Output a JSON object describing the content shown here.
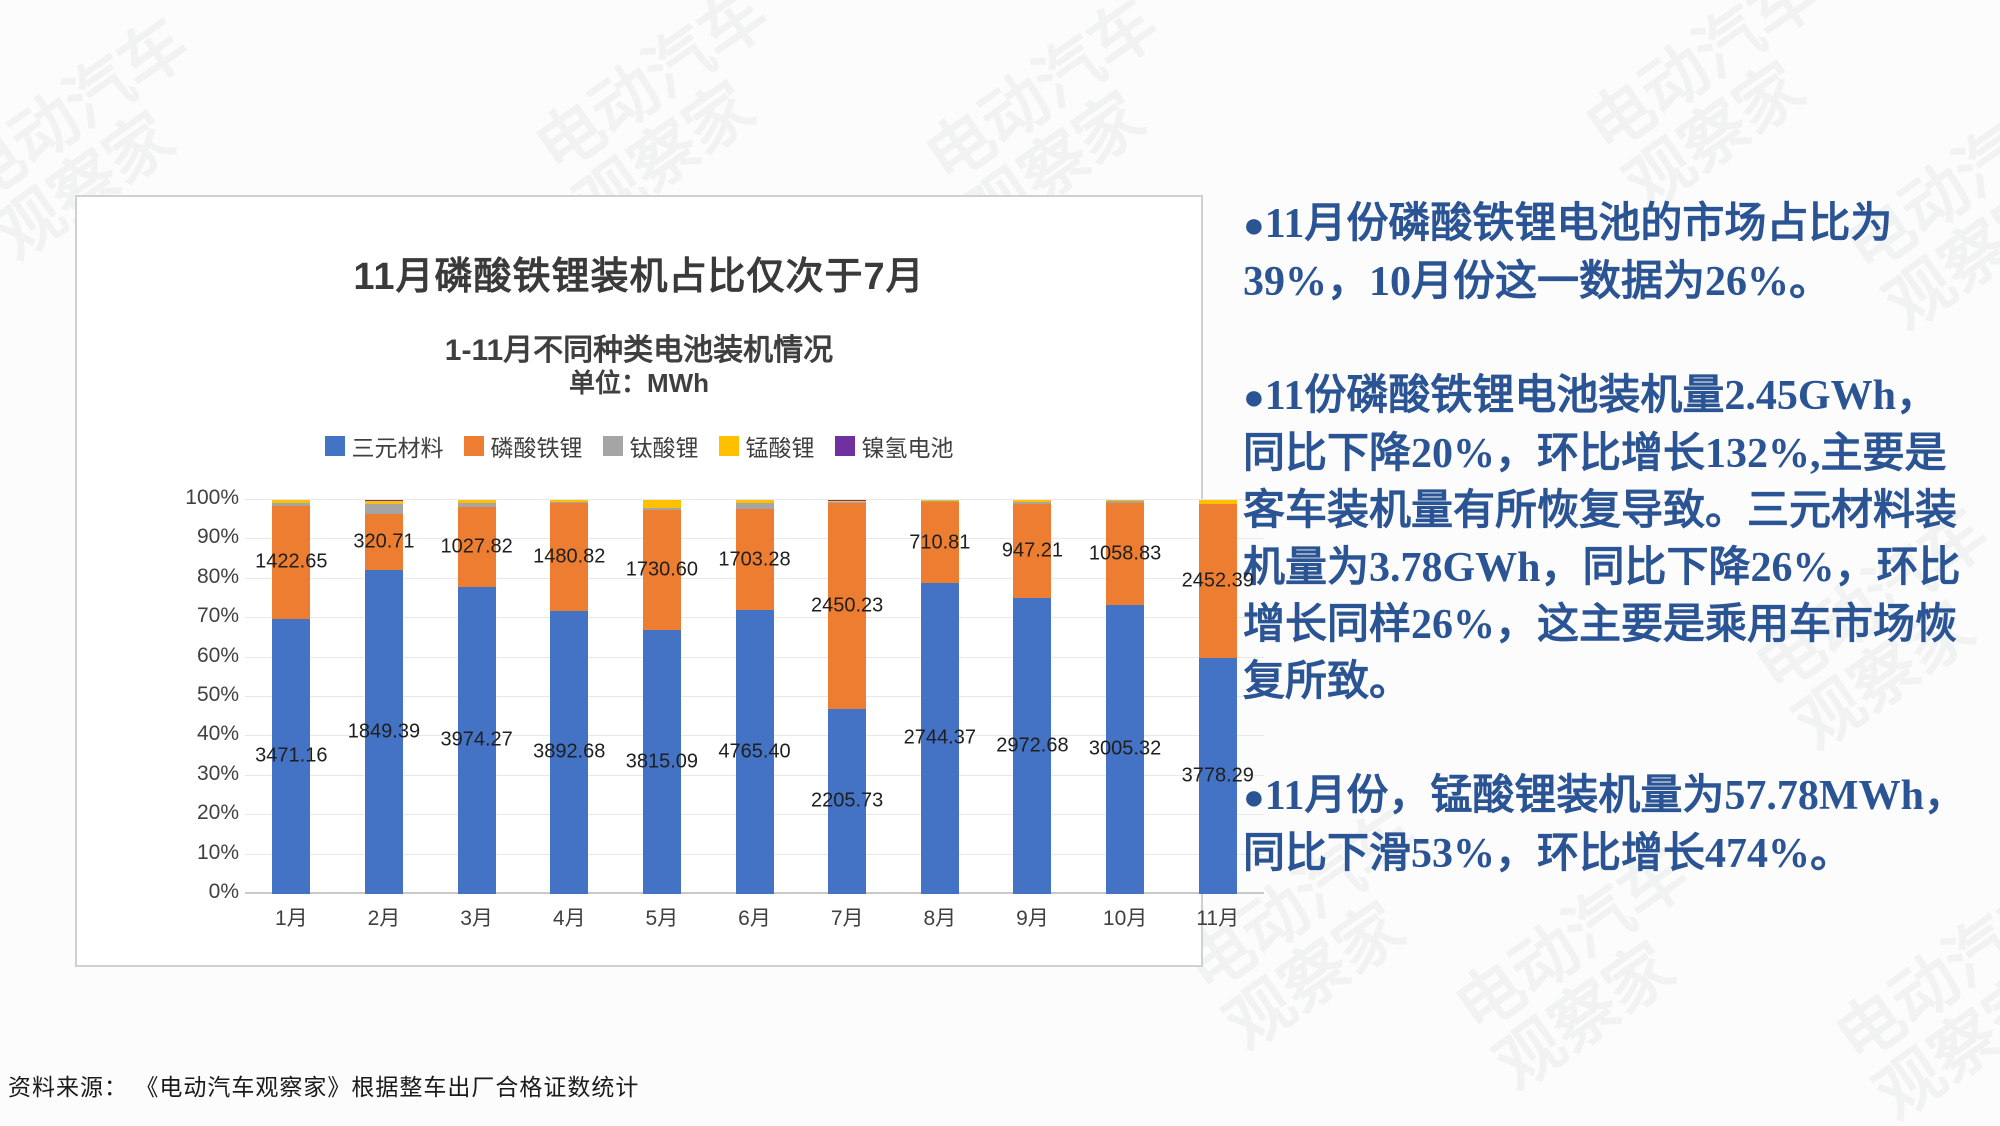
{
  "page": {
    "background": "#fcfcfc",
    "watermark_text": "电动汽车\n观察家",
    "source_note": "资料来源： 《电动汽车观察家》根据整车出厂合格证数统计"
  },
  "chart": {
    "title": "11月磷酸铁锂装机占比仅次于7月",
    "subtitle": "1-11月不同种类电池装机情况",
    "unit_label": "单位：MWh"
  },
  "chart_data": {
    "type": "bar",
    "stacked": true,
    "percent_stacked": true,
    "title": "1-11月不同种类电池装机情况",
    "unit": "MWh",
    "categories": [
      "1月",
      "2月",
      "3月",
      "4月",
      "5月",
      "6月",
      "7月",
      "8月",
      "9月",
      "10月",
      "11月"
    ],
    "series": [
      {
        "name": "三元材料",
        "color": "#4472C4",
        "show_labels": true,
        "values": [
          3471.16,
          1849.39,
          3974.27,
          3892.68,
          3815.09,
          4765.4,
          2205.73,
          2744.37,
          2972.68,
          3005.32,
          3778.29
        ]
      },
      {
        "name": "磷酸铁锂",
        "color": "#ED7D31",
        "show_labels": true,
        "values": [
          1422.65,
          320.71,
          1027.82,
          1480.82,
          1730.6,
          1703.28,
          2450.23,
          710.81,
          947.21,
          1058.83,
          2452.39
        ]
      },
      {
        "name": "钛酸锂",
        "color": "#A5A5A5",
        "show_labels": false,
        "values": [
          30,
          58,
          60,
          10,
          25,
          100,
          8,
          12,
          20,
          15,
          5
        ]
      },
      {
        "name": "锰酸锂",
        "color": "#FFC000",
        "show_labels": false,
        "values": [
          40,
          18,
          30,
          25,
          115,
          45,
          15,
          6,
          20,
          10,
          57.78
        ]
      },
      {
        "name": "镍氢电池",
        "color": "#7030A0",
        "show_labels": false,
        "values": [
          3,
          3,
          3,
          2,
          3,
          4,
          14,
          2,
          2,
          2,
          2
        ]
      }
    ],
    "y_axis": {
      "ticks": [
        "0%",
        "10%",
        "20%",
        "30%",
        "40%",
        "50%",
        "60%",
        "70%",
        "80%",
        "90%",
        "100%"
      ],
      "range": [
        0,
        100
      ],
      "grid": true
    },
    "legend_position": "top-center"
  },
  "notes": [
    {
      "bullet": "●",
      "text": "11月份磷酸铁锂电池的市场占比为39%，10月份这一数据为26%。"
    },
    {
      "bullet": "●",
      "text": "11份磷酸铁锂电池装机量2.45GWh，同比下降20%，环比增长132%,主要是客车装机量有所恢复导致。三元材料装机量为3.78GWh，同比下降26%，环比增长同样26%，这主要是乘用车市场恢复所致。"
    },
    {
      "bullet": "●",
      "text": "11月份，锰酸锂装机量为57.78MWh，同比下滑53%，环比增长474%。"
    }
  ]
}
